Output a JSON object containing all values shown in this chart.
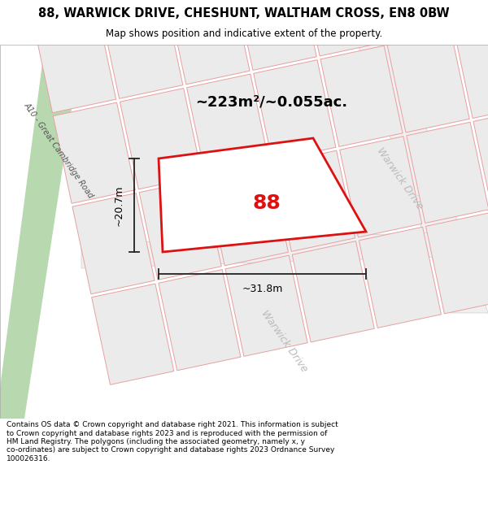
{
  "title": "88, WARWICK DRIVE, CHESHUNT, WALTHAM CROSS, EN8 0BW",
  "subtitle": "Map shows position and indicative extent of the property.",
  "area_text": "~223m²/~0.055ac.",
  "label_88": "88",
  "dim_height": "~20.7m",
  "dim_width": "~31.8m",
  "road_label_left": "A10 - Great Cambridge Road",
  "road_label_right1": "Warwick Drive",
  "road_label_right2": "Warwick Drive",
  "footer": "Contains OS data © Crown copyright and database right 2021. This information is subject to Crown copyright and database rights 2023 and is reproduced with the permission of HM Land Registry. The polygons (including the associated geometry, namely x, y co-ordinates) are subject to Crown copyright and database rights 2023 Ordnance Survey 100026316.",
  "map_bg": "#ffffff",
  "title_bg": "#ffffff",
  "footer_bg": "#ffffff",
  "road_color_green": "#b8d8b0",
  "plot_outline_color": "#dd1111",
  "plot_fill_color": "#ffffff",
  "parcel_fill": "#ebebeb",
  "parcel_edge": "#e8a0a0",
  "road_fill": "#ffffff",
  "road_edge": "#cccccc",
  "dim_line_color": "#222222",
  "warwick_label_color": "#bbbbbb",
  "a10_label_color": "#555555"
}
